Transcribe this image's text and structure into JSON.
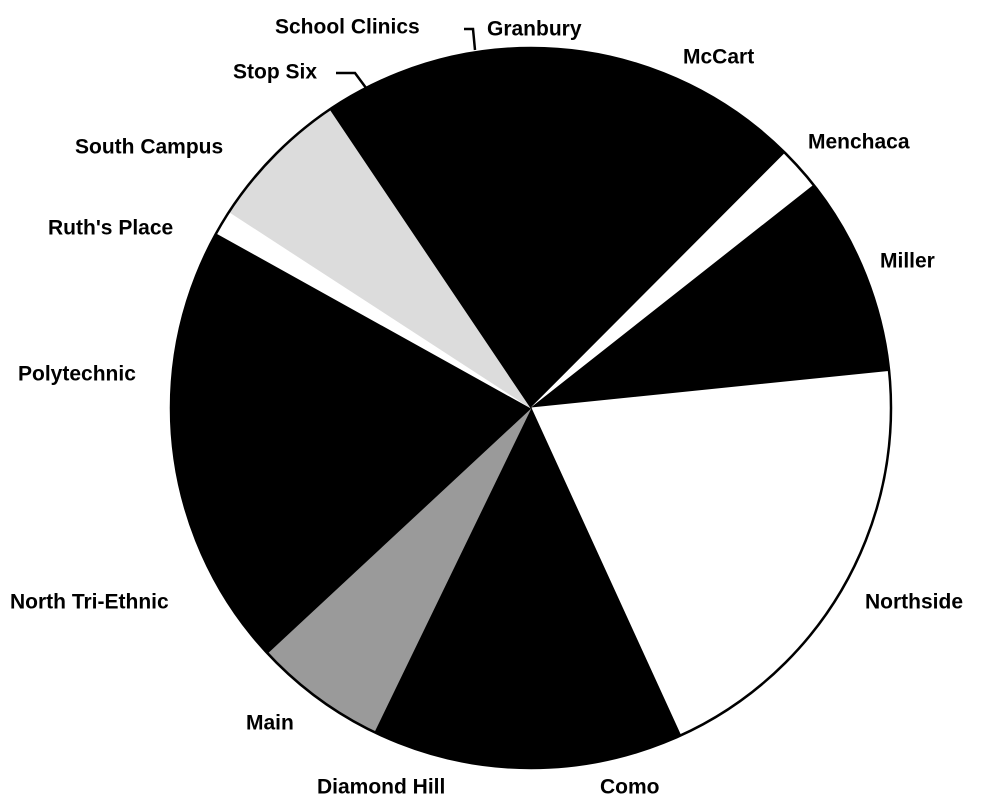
{
  "chart_data": {
    "type": "pie",
    "categories": [
      "Granbury",
      "McCart",
      "Menchaca",
      "Miller",
      "Northside",
      "Como",
      "Diamond Hill",
      "Main",
      "North Tri-Ethnic",
      "Polytechnic",
      "Ruth's Place",
      "South Campus",
      "Stop Six",
      "School Clinics"
    ],
    "values": [
      2.8,
      11.9,
      1.9,
      9.0,
      19.8,
      6.8,
      7.2,
      5.9,
      7.7,
      12.3,
      1.1,
      6.4,
      3.9,
      3.3
    ],
    "colors": [
      "#000000",
      "#000000",
      "#ffffff",
      "#000000",
      "#ffffff",
      "#000000",
      "#000000",
      "#9a9a9a",
      "#000000",
      "#000000",
      "#ffffff",
      "#dcdcdc",
      "#000000",
      "#000000"
    ]
  }
}
